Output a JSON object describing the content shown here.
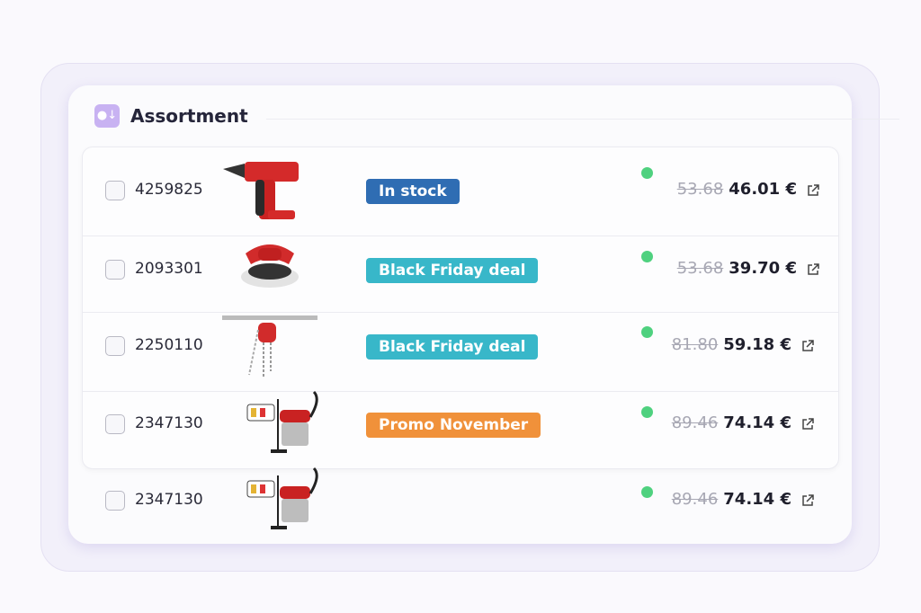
{
  "panel": {
    "title": "Assortment",
    "icon": "download-box-icon"
  },
  "colors": {
    "in_stock": "#2f6db3",
    "black_friday": "#38b7c9",
    "promo": "#f0913a",
    "status_dot": "#4fd17f"
  },
  "rows": [
    {
      "sku": "4259825",
      "product": "drill",
      "badge": "In stock",
      "badge_color": "#2f6db3",
      "old_price": "53.68",
      "price": "46.01 €"
    },
    {
      "sku": "2093301",
      "product": "polisher",
      "badge": "Black Friday deal",
      "badge_color": "#38b7c9",
      "old_price": "53.68",
      "price": "39.70 €"
    },
    {
      "sku": "2250110",
      "product": "chain-hoist",
      "badge": "Black Friday deal",
      "badge_color": "#38b7c9",
      "old_price": "81.80",
      "price": "59.18 €"
    },
    {
      "sku": "2347130",
      "product": "wet-dry-vacuum",
      "badge": "Promo November",
      "badge_color": "#f0913a",
      "old_price": "89.46",
      "price": "74.14 €"
    },
    {
      "sku": "2347130",
      "product": "wet-dry-vacuum",
      "badge": "",
      "badge_color": "",
      "old_price": "89.46",
      "price": "74.14 €"
    }
  ]
}
